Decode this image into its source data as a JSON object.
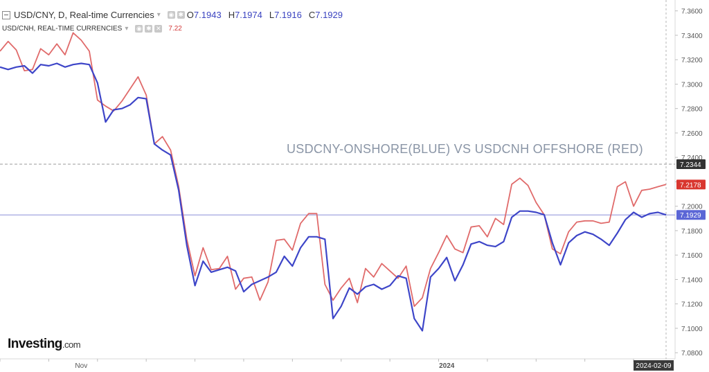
{
  "header": {
    "symbol_title": "USD/CNY, D, Real-time Currencies",
    "ohlc": [
      {
        "key": "O",
        "value": "7.1943"
      },
      {
        "key": "H",
        "value": "7.1974"
      },
      {
        "key": "L",
        "value": "7.1916"
      },
      {
        "key": "C",
        "value": "7.1929"
      }
    ]
  },
  "overlay_legend": {
    "title": "USD/CNH, REAL-TIME CURRENCIES",
    "value": "7.22"
  },
  "logo": {
    "brand": "Investing",
    "suffix": ".com"
  },
  "colors": {
    "blue_series": "#3d45c8",
    "red_series": "#e06a6a",
    "label_blue": "#5b66d6",
    "label_red": "#d9362f",
    "label_gray": "#333333"
  },
  "chart_data": {
    "type": "line",
    "annotation": "USDCNY-ONSHORE(BLUE) VS USDCNH OFFSHORE (RED)",
    "y_axis": {
      "range": [
        7.075,
        7.3655
      ],
      "ticks": [
        "7.3600",
        "7.3400",
        "7.3200",
        "7.3000",
        "7.2800",
        "7.2600",
        "7.2400",
        "7.2200",
        "7.2000",
        "7.1800",
        "7.1600",
        "7.1400",
        "7.1200",
        "7.1000",
        "7.0800"
      ],
      "position": "right"
    },
    "x_axis": {
      "labels": [
        {
          "text": "Nov",
          "index": 10,
          "bold": false
        },
        {
          "text": "2024",
          "index": 55,
          "bold": true
        }
      ],
      "last_date_label": "2024-02-09"
    },
    "price_labels": [
      {
        "text": "7.2344",
        "value": 7.2344,
        "style": "gray"
      },
      {
        "text": "7.2178",
        "value": 7.2178,
        "style": "red"
      },
      {
        "text": "7.1929",
        "value": 7.1929,
        "style": "blue"
      }
    ],
    "horizontal_lines": [
      {
        "value": 7.2344,
        "style": "dashed-gray"
      },
      {
        "value": 7.1929,
        "style": "blue"
      }
    ],
    "series": [
      {
        "values": [
          7.314,
          7.312,
          7.314,
          7.315,
          7.309,
          7.316,
          7.315,
          7.317,
          7.314,
          7.316,
          7.317,
          7.316,
          7.301,
          7.269,
          7.279,
          7.28,
          7.283,
          7.289,
          7.288,
          7.251,
          7.246,
          7.242,
          7.213,
          7.168,
          7.135,
          7.155,
          7.146,
          7.148,
          7.15,
          7.147,
          7.13,
          7.136,
          7.139,
          7.142,
          7.146,
          7.159,
          7.151,
          7.166,
          7.175,
          7.175,
          7.173,
          7.108,
          7.118,
          7.133,
          7.128,
          7.134,
          7.136,
          7.132,
          7.135,
          7.143,
          7.141,
          7.108,
          7.098,
          7.142,
          7.149,
          7.158,
          7.139,
          7.152,
          7.169,
          7.171,
          7.168,
          7.167,
          7.171,
          7.191,
          7.196,
          7.196,
          7.195,
          7.193,
          7.17,
          7.152,
          7.17,
          7.176,
          7.179,
          7.177,
          7.173,
          7.168,
          7.178,
          7.189,
          7.195,
          7.191,
          7.194,
          7.195,
          7.1929
        ]
      },
      {
        "values": [
          7.327,
          7.335,
          7.328,
          7.311,
          7.312,
          7.329,
          7.324,
          7.333,
          7.324,
          7.342,
          7.336,
          7.327,
          7.287,
          7.282,
          7.278,
          7.286,
          7.296,
          7.306,
          7.291,
          7.251,
          7.257,
          7.246,
          7.216,
          7.173,
          7.143,
          7.166,
          7.148,
          7.149,
          7.159,
          7.132,
          7.141,
          7.142,
          7.123,
          7.138,
          7.172,
          7.173,
          7.164,
          7.186,
          7.194,
          7.194,
          7.136,
          7.123,
          7.133,
          7.141,
          7.121,
          7.149,
          7.142,
          7.153,
          7.147,
          7.141,
          7.151,
          7.118,
          7.125,
          7.149,
          7.162,
          7.176,
          7.165,
          7.162,
          7.183,
          7.184,
          7.175,
          7.19,
          7.185,
          7.218,
          7.223,
          7.217,
          7.203,
          7.193,
          7.165,
          7.161,
          7.179,
          7.187,
          7.188,
          7.188,
          7.186,
          7.187,
          7.216,
          7.22,
          7.2,
          7.213,
          7.214,
          7.216,
          7.2178
        ]
      }
    ]
  }
}
